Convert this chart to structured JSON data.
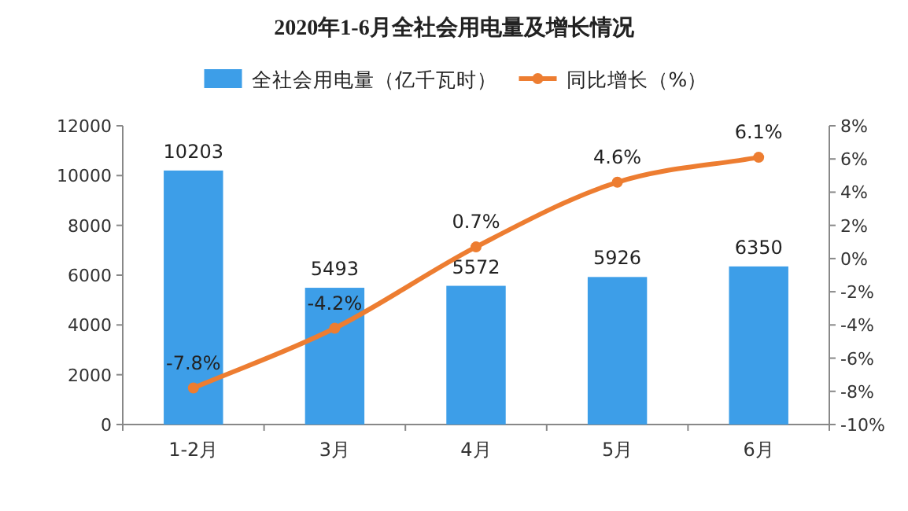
{
  "chart_data": {
    "type": "bar",
    "title": "2020年1-6月全社会用电量及增长情况",
    "categories": [
      "1-2月",
      "3月",
      "4月",
      "5月",
      "6月"
    ],
    "series": [
      {
        "name": "全社会用电量（亿千瓦时）",
        "color": "#3d9ee8",
        "values": [
          10203,
          5493,
          5572,
          5926,
          6350
        ],
        "value_labels": [
          "10203",
          "5493",
          "5572",
          "5926",
          "6350"
        ]
      },
      {
        "name": "同比增长（%）",
        "type": "line",
        "axis": "y2",
        "color": "#ed7d31",
        "marker": "circle",
        "values": [
          -7.8,
          -4.2,
          0.7,
          4.6,
          6.1
        ],
        "value_labels": [
          "-7.8%",
          "-4.2%",
          "0.7%",
          "4.6%",
          "6.1%"
        ]
      }
    ],
    "ylim": [
      0,
      12000
    ],
    "yticks": [
      0,
      2000,
      4000,
      6000,
      8000,
      10000,
      12000
    ],
    "y2lim": [
      -10,
      8
    ],
    "y2ticks": [
      {
        "value": -10,
        "label": "-10%"
      },
      {
        "value": -8,
        "label": "-8%"
      },
      {
        "value": -6,
        "label": "-6%"
      },
      {
        "value": -4,
        "label": "-4%"
      },
      {
        "value": -2,
        "label": "-2%"
      },
      {
        "value": 0,
        "label": "0%"
      },
      {
        "value": 2,
        "label": "2%"
      },
      {
        "value": 4,
        "label": "4%"
      },
      {
        "value": 6,
        "label": "6%"
      },
      {
        "value": 8,
        "label": "8%"
      }
    ],
    "grid": false,
    "legend": "top"
  }
}
